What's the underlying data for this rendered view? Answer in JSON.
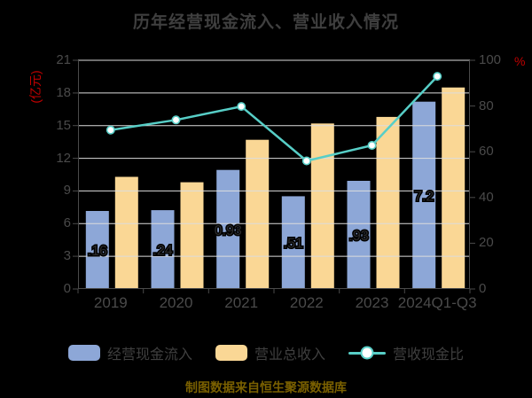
{
  "title": "历年经营现金流入、营业收入情况",
  "footer": "制图数据来自恒生聚源数据库",
  "colors": {
    "background": "#000000",
    "bar_cash_inflow": "#8da7d7",
    "bar_revenue": "#fad795",
    "ratio_line": "#57cec7",
    "marker_fill": "#ffffff",
    "gridline": "#dcdcdc",
    "axis_line": "#4a4a4a",
    "axis_text": "#4a4a4a",
    "title_text": "#3f3f3f",
    "bar_label_text": "#2b2b2b",
    "unit_label_red": "#c00000",
    "footer_text": "#7a6000"
  },
  "chart_data": {
    "type": "bar",
    "subtype": "grouped-bars-with-line",
    "categories": [
      "2019",
      "2020",
      "2021",
      "2022",
      "2023",
      "2024Q1-Q3"
    ],
    "series": [
      {
        "name": "经营现金流入",
        "type": "bar",
        "axis": "left",
        "color": "#8da7d7",
        "values": [
          7.16,
          7.24,
          10.93,
          8.51,
          9.93,
          17.2
        ],
        "visible_bar_labels": [
          ".16",
          ".24",
          "0.93",
          ".51",
          ".93",
          "7.2"
        ]
      },
      {
        "name": "营业总收入",
        "type": "bar",
        "axis": "left",
        "color": "#fad795",
        "values": [
          10.3,
          9.8,
          13.7,
          15.2,
          15.8,
          18.5
        ],
        "visible_bar_labels": [
          "",
          "",
          "",
          "",
          "",
          ""
        ]
      },
      {
        "name": "营收现金比",
        "type": "line",
        "axis": "right",
        "color": "#57cec7",
        "values": [
          69.5,
          73.9,
          79.8,
          56.0,
          62.8,
          93.0
        ]
      }
    ],
    "left_axis": {
      "label": "(亿元)",
      "min": 0,
      "max": 21,
      "step": 3,
      "ticks": [
        0,
        3,
        6,
        9,
        12,
        15,
        18,
        21
      ]
    },
    "right_axis": {
      "label": "%",
      "min": 0,
      "max": 100,
      "step": 20,
      "ticks": [
        0,
        20,
        40,
        60,
        80,
        100
      ]
    },
    "grid": true,
    "legend_position": "bottom"
  }
}
